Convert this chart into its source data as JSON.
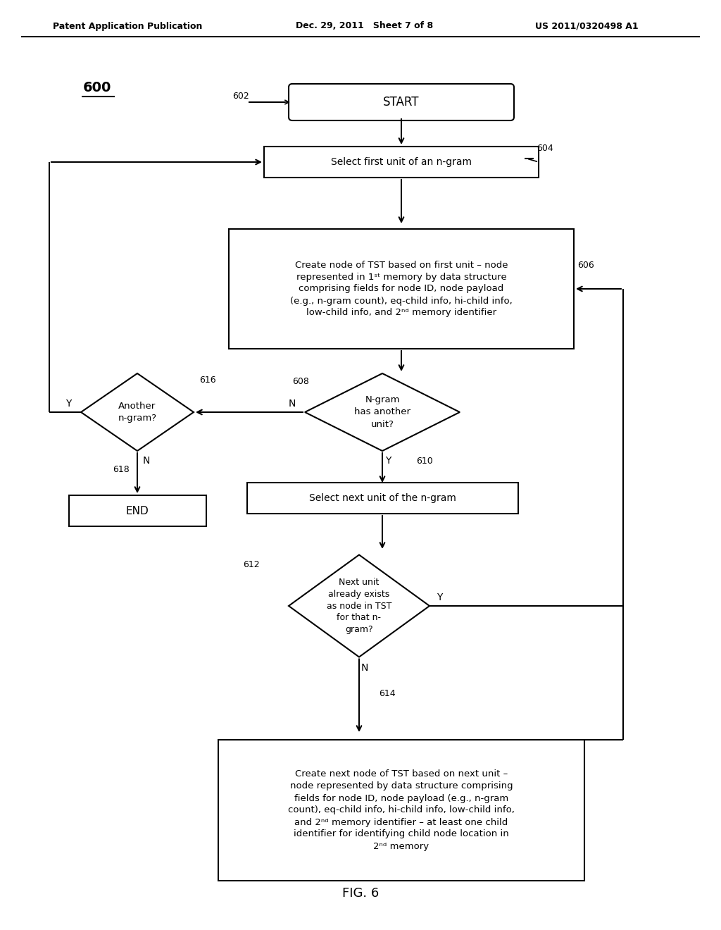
{
  "header_left": "Patent Application Publication",
  "header_mid": "Dec. 29, 2011   Sheet 7 of 8",
  "header_right": "US 2011/0320498 A1",
  "fig_caption": "FIG. 6",
  "fig_label": "600",
  "background": "#ffffff",
  "line_color": "#000000",
  "text_color": "#000000",
  "superscript_st": "st",
  "superscript_nd": "nd",
  "start_label": "START",
  "sf_label": "Select first unit of an n-gram",
  "cf_label": "Create node of TST based on first unit – node\nrepresented in 1st memory by data structure\ncomprising fields for node ID, node payload\n(e.g., n-gram count), eq-child info, hi-child info,\nlow-child info, and 2nd memory identifier",
  "d1_label": "N-gram\nhas another\nunit?",
  "sn_label": "Select next unit of the n-gram",
  "d2_label": "Next unit\nalready exists\nas node in TST\nfor that n-\ngram?",
  "cn_label": "Create next node of TST based on next unit –\nnode represented by data structure comprising\nfields for node ID, node payload (e.g., n-gram\ncount), eq-child info, hi-child info, low-child info,\nand 2nd memory identifier – at least one child\nidentifier for identifying child node location in\n2nd memory",
  "d3_label": "Another\nn-gram?",
  "end_label": "END",
  "n602": "602",
  "n604": "604",
  "n606": "606",
  "n608": "608",
  "n610": "610",
  "n612": "612",
  "n614": "614",
  "n616": "616",
  "n618": "618"
}
